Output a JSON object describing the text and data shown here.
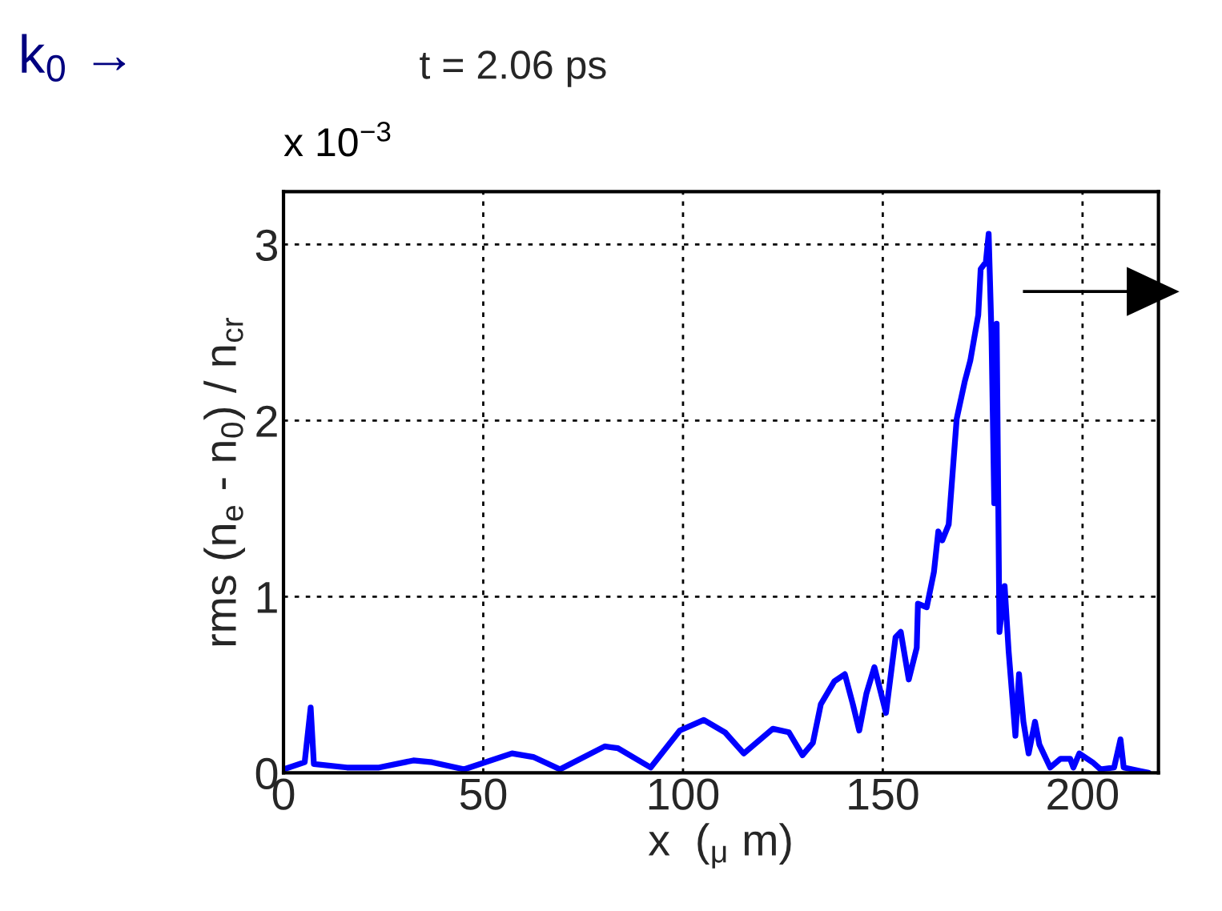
{
  "chart_data": {
    "type": "line",
    "title": "t = 2.06 ps",
    "xlabel": "x  ($_{μ}$ m)",
    "ylabel": "rms (n$_{e}$ - n$_{0}$) / n$_{cr}$",
    "annotations": [
      "k$_{0}$ →",
      "x 10$^{−3}$"
    ],
    "xlim": [
      0,
      219
    ],
    "ylim": [
      0,
      3.3
    ],
    "xticks": [
      0,
      50,
      100,
      150,
      200
    ],
    "yticks": [
      0,
      1,
      2,
      3
    ],
    "grid": true,
    "line_style": "solid",
    "series": [
      {
        "color": "#0000ff",
        "x": [
          0,
          5.3,
          6.8,
          7.6,
          15.9,
          23.9,
          32.5,
          37.2,
          45.2,
          57.2,
          62.5,
          69.2,
          80.4,
          83.7,
          91.9,
          99.2,
          105.2,
          110.5,
          115.2,
          122.5,
          126.5,
          129.9,
          132.5,
          134.5,
          137.9,
          140.5,
          142.5,
          144.1,
          145.9,
          147.9,
          150.8,
          153.2,
          154.5,
          156.5,
          158.5,
          158.8,
          161,
          162.8,
          163.9,
          164.9,
          166.5,
          168.5,
          170.5,
          171.9,
          173.9,
          174.5,
          175.8,
          176.5,
          177.2,
          177.9,
          178.5,
          179.2,
          180.5,
          181.5,
          183.2,
          184.1,
          185.2,
          186.5,
          188.1,
          189.2,
          191.9,
          194.5,
          196.9,
          197.7,
          199.2,
          202.5,
          204.5,
          207.9,
          209.5,
          210.3,
          214.5,
          216.5
        ],
        "values": [
          0.02,
          0.06,
          0.37,
          0.05,
          0.03,
          0.03,
          0.07,
          0.06,
          0.02,
          0.11,
          0.09,
          0.02,
          0.15,
          0.14,
          0.03,
          0.24,
          0.3,
          0.23,
          0.11,
          0.25,
          0.23,
          0.1,
          0.17,
          0.39,
          0.52,
          0.56,
          0.39,
          0.24,
          0.45,
          0.6,
          0.34,
          0.77,
          0.8,
          0.53,
          0.71,
          0.96,
          0.94,
          1.14,
          1.37,
          1.32,
          1.41,
          2.01,
          2.22,
          2.34,
          2.6,
          2.86,
          2.9,
          3.06,
          2.5,
          1.53,
          2.55,
          0.8,
          1.06,
          0.69,
          0.21,
          0.56,
          0.29,
          0.11,
          0.29,
          0.16,
          0.03,
          0.08,
          0.08,
          0.03,
          0.11,
          0.06,
          0.02,
          0.03,
          0.19,
          0.03,
          0.01,
          0.0
        ]
      }
    ]
  }
}
